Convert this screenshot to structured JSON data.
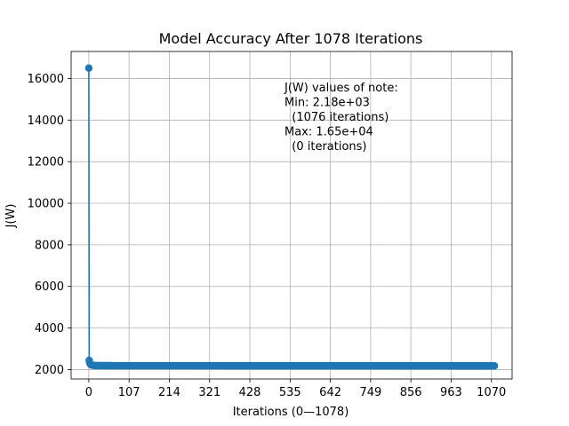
{
  "chart_data": {
    "type": "line",
    "title": "Model Accuracy After 1078 Iterations",
    "xlabel": "Iterations (0—1078)",
    "ylabel": "J(W)",
    "xlim": [
      -47,
      1125
    ],
    "ylim": [
      1550,
      17300
    ],
    "xticks": [
      0,
      107,
      214,
      321,
      428,
      535,
      642,
      749,
      856,
      963,
      1070
    ],
    "yticks": [
      2000,
      4000,
      6000,
      8000,
      10000,
      12000,
      14000,
      16000
    ],
    "grid": true,
    "color": "#1f77b4",
    "annotation": [
      "J(W) values of note:",
      "Min: 2.18e+03",
      "  (1076 iterations)",
      "Max: 1.65e+04",
      "  (0 iterations)"
    ],
    "series": [
      {
        "x": [
          0,
          1,
          2,
          3,
          4,
          5,
          6,
          8,
          10,
          15,
          20,
          30,
          50,
          100,
          200,
          300,
          400,
          500,
          600,
          700,
          800,
          900,
          1000,
          1076,
          1078
        ],
        "y": [
          16500,
          2450,
          2350,
          2300,
          2270,
          2250,
          2235,
          2220,
          2210,
          2200,
          2195,
          2192,
          2190,
          2188,
          2187,
          2186,
          2185,
          2184,
          2183,
          2182,
          2181,
          2181,
          2180,
          2180,
          2180
        ]
      }
    ]
  }
}
